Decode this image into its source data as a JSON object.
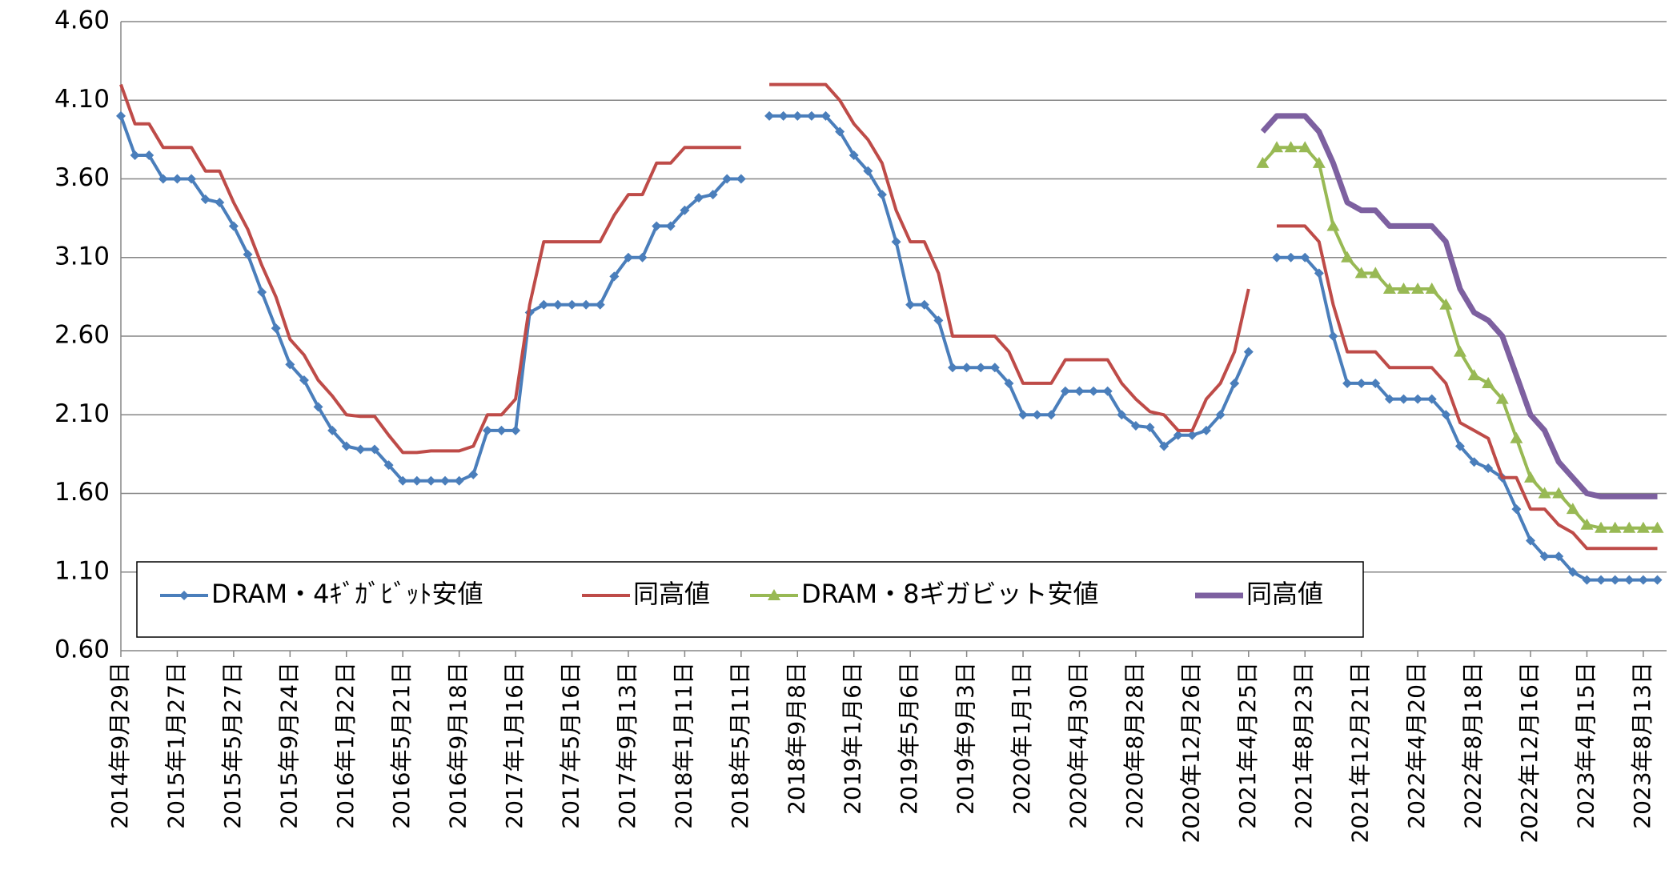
{
  "chart_data": {
    "type": "line",
    "categories": [
      "2014年9月29日",
      null,
      null,
      null,
      "2015年1月27日",
      null,
      null,
      null,
      "2015年5月27日",
      null,
      null,
      null,
      "2015年9月24日",
      null,
      null,
      null,
      "2016年1月22日",
      null,
      null,
      null,
      "2016年5月21日",
      null,
      null,
      null,
      "2016年9月18日",
      null,
      null,
      null,
      "2017年1月16日",
      null,
      null,
      null,
      "2017年5月16日",
      null,
      null,
      null,
      "2017年9月13日",
      null,
      null,
      null,
      "2018年1月11日",
      null,
      null,
      null,
      "2018年5月11日",
      null,
      null,
      null,
      "2018年9月8日",
      null,
      null,
      null,
      "2019年1月6日",
      null,
      null,
      null,
      "2019年5月6日",
      null,
      null,
      null,
      "2019年9月3日",
      null,
      null,
      null,
      "2020年1月1日",
      null,
      null,
      null,
      "2020年4月30日",
      null,
      null,
      null,
      "2020年8月28日",
      null,
      null,
      null,
      "2020年12月26日",
      null,
      null,
      null,
      "2021年4月25日",
      null,
      null,
      null,
      "2021年8月23日",
      null,
      null,
      null,
      "2021年12月21日",
      null,
      null,
      null,
      "2022年4月20日",
      null,
      null,
      null,
      "2022年8月18日",
      null,
      null,
      null,
      "2022年12月16日",
      null,
      null,
      null,
      "2023年4月15日",
      null,
      null,
      null,
      "2023年8月13日",
      null
    ],
    "series": [
      {
        "name": "DRAM・4ｷﾞｶﾞﾋﾞｯﾄ安値",
        "color": "#4a7ebb",
        "marker": "diamond",
        "values": [
          4.0,
          3.75,
          3.75,
          3.6,
          3.6,
          3.6,
          3.47,
          3.45,
          3.3,
          3.12,
          2.88,
          2.65,
          2.42,
          2.32,
          2.15,
          2.0,
          1.9,
          1.88,
          1.88,
          1.78,
          1.68,
          1.68,
          1.68,
          1.68,
          1.68,
          1.72,
          2.0,
          2.0,
          2.0,
          2.75,
          2.8,
          2.8,
          2.8,
          2.8,
          2.8,
          2.98,
          3.1,
          3.1,
          3.3,
          3.3,
          3.4,
          3.48,
          3.5,
          3.6,
          3.6,
          null,
          4.0,
          4.0,
          4.0,
          4.0,
          4.0,
          3.9,
          3.75,
          3.65,
          3.5,
          3.2,
          2.8,
          2.8,
          2.7,
          2.4,
          2.4,
          2.4,
          2.4,
          2.3,
          2.1,
          2.1,
          2.1,
          2.25,
          2.25,
          2.25,
          2.25,
          2.1,
          2.03,
          2.02,
          1.9,
          1.97,
          1.97,
          2.0,
          2.1,
          2.3,
          2.5,
          null,
          3.1,
          3.1,
          3.1,
          3.0,
          2.6,
          2.3,
          2.3,
          2.3,
          2.2,
          2.2,
          2.2,
          2.2,
          2.1,
          1.9,
          1.8,
          1.76,
          1.7,
          1.5,
          1.3,
          1.2,
          1.2,
          1.1,
          1.05,
          1.05,
          1.05,
          1.05,
          1.05,
          1.05
        ]
      },
      {
        "name": "同高値",
        "color": "#be4b48",
        "values": [
          4.2,
          3.95,
          3.95,
          3.8,
          3.8,
          3.8,
          3.65,
          3.65,
          3.45,
          3.28,
          3.05,
          2.85,
          2.58,
          2.48,
          2.32,
          2.22,
          2.1,
          2.09,
          2.09,
          1.97,
          1.86,
          1.86,
          1.87,
          1.87,
          1.87,
          1.9,
          2.1,
          2.1,
          2.2,
          2.8,
          3.2,
          3.2,
          3.2,
          3.2,
          3.2,
          3.37,
          3.5,
          3.5,
          3.7,
          3.7,
          3.8,
          3.8,
          3.8,
          3.8,
          3.8,
          null,
          4.2,
          4.2,
          4.2,
          4.2,
          4.2,
          4.1,
          3.95,
          3.85,
          3.7,
          3.4,
          3.2,
          3.2,
          3.0,
          2.6,
          2.6,
          2.6,
          2.6,
          2.5,
          2.3,
          2.3,
          2.3,
          2.45,
          2.45,
          2.45,
          2.45,
          2.3,
          2.2,
          2.12,
          2.1,
          2.0,
          2.0,
          2.2,
          2.3,
          2.5,
          2.9,
          null,
          3.3,
          3.3,
          3.3,
          3.2,
          2.8,
          2.5,
          2.5,
          2.5,
          2.4,
          2.4,
          2.4,
          2.4,
          2.3,
          2.05,
          2.0,
          1.95,
          1.7,
          1.7,
          1.5,
          1.5,
          1.4,
          1.35,
          1.25,
          1.25,
          1.25,
          1.25,
          1.25,
          1.25
        ]
      },
      {
        "name": "DRAM・8ギガビット安値",
        "color": "#98b954",
        "marker": "triangle",
        "values": [
          null,
          null,
          null,
          null,
          null,
          null,
          null,
          null,
          null,
          null,
          null,
          null,
          null,
          null,
          null,
          null,
          null,
          null,
          null,
          null,
          null,
          null,
          null,
          null,
          null,
          null,
          null,
          null,
          null,
          null,
          null,
          null,
          null,
          null,
          null,
          null,
          null,
          null,
          null,
          null,
          null,
          null,
          null,
          null,
          null,
          null,
          null,
          null,
          null,
          null,
          null,
          null,
          null,
          null,
          null,
          null,
          null,
          null,
          null,
          null,
          null,
          null,
          null,
          null,
          null,
          null,
          null,
          null,
          null,
          null,
          null,
          null,
          null,
          null,
          null,
          null,
          null,
          null,
          null,
          null,
          null,
          3.7,
          3.8,
          3.8,
          3.8,
          3.7,
          3.3,
          3.1,
          3.0,
          3.0,
          2.9,
          2.9,
          2.9,
          2.9,
          2.8,
          2.5,
          2.35,
          2.3,
          2.2,
          1.95,
          1.7,
          1.6,
          1.6,
          1.5,
          1.4,
          1.38,
          1.38,
          1.38,
          1.38,
          1.38
        ]
      },
      {
        "name": "同高値",
        "color": "#7d60a0",
        "values": [
          null,
          null,
          null,
          null,
          null,
          null,
          null,
          null,
          null,
          null,
          null,
          null,
          null,
          null,
          null,
          null,
          null,
          null,
          null,
          null,
          null,
          null,
          null,
          null,
          null,
          null,
          null,
          null,
          null,
          null,
          null,
          null,
          null,
          null,
          null,
          null,
          null,
          null,
          null,
          null,
          null,
          null,
          null,
          null,
          null,
          null,
          null,
          null,
          null,
          null,
          null,
          null,
          null,
          null,
          null,
          null,
          null,
          null,
          null,
          null,
          null,
          null,
          null,
          null,
          null,
          null,
          null,
          null,
          null,
          null,
          null,
          null,
          null,
          null,
          null,
          null,
          null,
          null,
          null,
          null,
          null,
          3.9,
          4.0,
          4.0,
          4.0,
          3.9,
          3.7,
          3.45,
          3.4,
          3.4,
          3.3,
          3.3,
          3.3,
          3.3,
          3.2,
          2.9,
          2.75,
          2.7,
          2.6,
          2.35,
          2.1,
          2.0,
          1.8,
          1.7,
          1.6,
          1.58,
          1.58,
          1.58,
          1.58,
          1.58
        ]
      }
    ],
    "ylim": [
      0.6,
      4.6
    ],
    "yticks": [
      {
        "value": 0.6,
        "label": "0.60"
      },
      {
        "value": 1.1,
        "label": "1.10"
      },
      {
        "value": 1.6,
        "label": "1.60"
      },
      {
        "value": 2.1,
        "label": "2.10"
      },
      {
        "value": 2.6,
        "label": "2.60"
      },
      {
        "value": 3.1,
        "label": "3.10"
      },
      {
        "value": 3.6,
        "label": "3.60"
      },
      {
        "value": 4.1,
        "label": "4.10"
      },
      {
        "value": 4.6,
        "label": "4.60"
      }
    ],
    "grid": true
  }
}
